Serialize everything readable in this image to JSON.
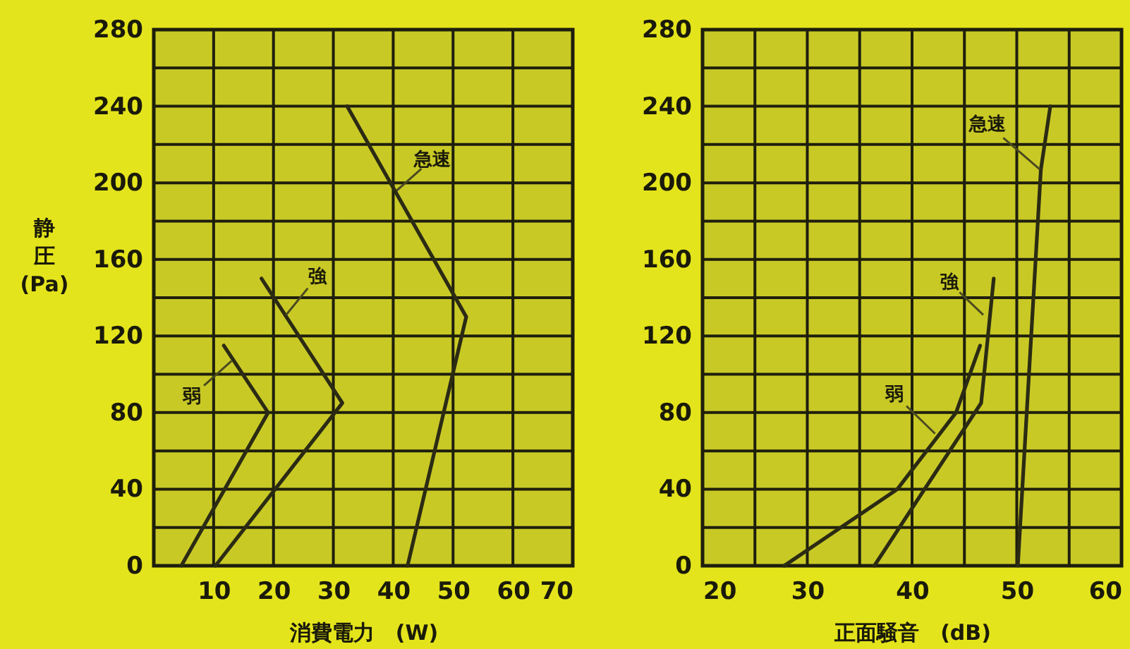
{
  "chart_data": [
    {
      "type": "line",
      "xlabel": "消費電力　(W)",
      "ylabel": "静圧 (Pa)",
      "xlim": [
        0,
        70
      ],
      "xticks": [
        10,
        20,
        30,
        40,
        50,
        60,
        70
      ],
      "ylim": [
        0,
        280
      ],
      "yticks": [
        0,
        {
          "value": 20,
          "label": null
        },
        40,
        {
          "value": 60,
          "label": null
        },
        80,
        {
          "value": 100,
          "label": null
        },
        120,
        {
          "value": 140,
          "label": null
        },
        160,
        {
          "value": 180,
          "label": null
        },
        200,
        {
          "value": 220,
          "label": null
        },
        240,
        {
          "value": 260,
          "label": null
        },
        280
      ],
      "grid": true,
      "series": [
        {
          "color": "#2b2b14",
          "x": [
            11.7,
            19.1,
            4.6
          ],
          "values": [
            115,
            80,
            0
          ]
        },
        {
          "color": "#2b2b14",
          "x": [
            18,
            31.5,
            10.3
          ],
          "values": [
            150,
            85,
            0
          ]
        },
        {
          "color": "#2b2b14",
          "x": [
            32.3,
            52.2,
            42.4
          ],
          "values": [
            240,
            130,
            0
          ]
        }
      ],
      "annotations": [
        {
          "text": "弱",
          "x": 13,
          "y": 107
        },
        {
          "text": "強",
          "x": 22.1,
          "y": 131
        },
        {
          "text": "急速",
          "x": 40.6,
          "y": 196
        }
      ]
    },
    {
      "type": "line",
      "xlabel": "正面騒音　(dB)",
      "xlim": [
        20,
        60
      ],
      "xticks": [
        20,
        {
          "value": 25,
          "label": null
        },
        30,
        {
          "value": 35,
          "label": null
        },
        40,
        {
          "value": 45,
          "label": null
        },
        50,
        {
          "value": 55,
          "label": null
        },
        60
      ],
      "ylim": [
        0,
        280
      ],
      "yticks": [
        0,
        {
          "value": 20,
          "label": null
        },
        40,
        {
          "value": 60,
          "label": null
        },
        80,
        {
          "value": 100,
          "label": null
        },
        120,
        {
          "value": 140,
          "label": null
        },
        160,
        {
          "value": 180,
          "label": null
        },
        200,
        {
          "value": 220,
          "label": null
        },
        240,
        {
          "value": 260,
          "label": null
        },
        280
      ],
      "grid": true,
      "series": [
        {
          "color": "#2b2b14",
          "x": [
            46.5,
            44.2,
            38.6,
            27.8
          ],
          "values": [
            115,
            80,
            40,
            0
          ]
        },
        {
          "color": "#2b2b14",
          "x": [
            47.8,
            46.6,
            36.4
          ],
          "values": [
            150,
            85,
            0
          ]
        },
        {
          "color": "#2b2b14",
          "x": [
            53.2,
            52.3,
            50.1
          ],
          "values": [
            240,
            207,
            0
          ]
        }
      ],
      "annotations": [
        {
          "text": "弱",
          "x": 42.2,
          "y": 69
        },
        {
          "text": "強",
          "x": 46.8,
          "y": 131
        },
        {
          "text": "急速",
          "x": 52.2,
          "y": 207
        }
      ]
    }
  ]
}
